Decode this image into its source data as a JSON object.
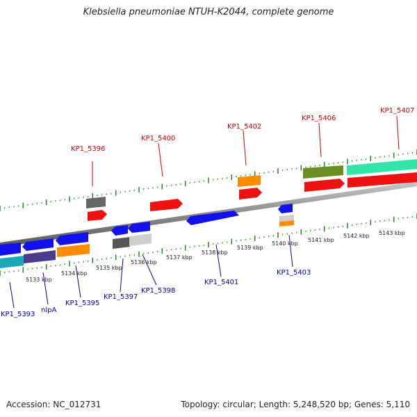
{
  "title": "Klebsiella pneumoniae NTUH-K2044, complete genome",
  "footer": {
    "accession": "Accession: NC_012731",
    "summary": "Topology: circular; Length: 5,248,520 bp; Genes: 5,110"
  },
  "colors": {
    "backbone": "#8a8a8a",
    "tick": "#1f8a1f",
    "label_top": "#cc0000",
    "label_bottom": "#0000aa"
  },
  "scale_labels": [
    "5133 kbp",
    "5134 kbp",
    "5135 kbp",
    "5136 kbp",
    "5137 kbp",
    "5138 kbp",
    "5139 kbp",
    "5140 kbp",
    "5141 kbp",
    "5142 kbp",
    "5143 kbp"
  ],
  "top_genes": [
    "KP1_5396",
    "KP1_5400",
    "KP1_5402",
    "KP1_5406",
    "KP1_5407"
  ],
  "bottom_genes": [
    "KP1_5393",
    "nlpA",
    "KP1_5395",
    "KP1_5397",
    "KP1_5398",
    "KP1_5401",
    "KP1_5403"
  ]
}
